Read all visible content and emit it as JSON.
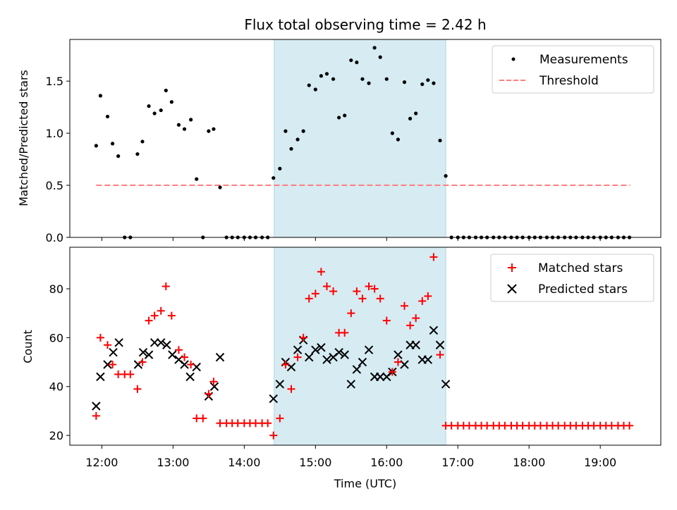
{
  "chart_data": {
    "type": "scatter",
    "title": "Flux total observing time = 2.42 h",
    "x_axis": {
      "label": "Time (UTC)",
      "range_hours": [
        11.55,
        19.85
      ],
      "ticks": [
        {
          "value": 12,
          "label": "12:00"
        },
        {
          "value": 13,
          "label": "13:00"
        },
        {
          "value": 14,
          "label": "14:00"
        },
        {
          "value": 15,
          "label": "15:00"
        },
        {
          "value": 16,
          "label": "16:00"
        },
        {
          "value": 17,
          "label": "17:00"
        },
        {
          "value": 18,
          "label": "18:00"
        },
        {
          "value": 19,
          "label": "19:00"
        }
      ]
    },
    "highlight_span": {
      "start_hours": 14.42,
      "end_hours": 16.83,
      "color": "#add8e6"
    },
    "top_panel": {
      "ylabel": "Matched/Predicted stars",
      "ylim": [
        0,
        1.9
      ],
      "yticks": [
        {
          "value": 0.0,
          "label": "0.0"
        },
        {
          "value": 0.5,
          "label": "0.5"
        },
        {
          "value": 1.0,
          "label": "1.0"
        },
        {
          "value": 1.5,
          "label": "1.5"
        }
      ],
      "legend": {
        "position": "upper-right",
        "measurements_label": "Measurements",
        "threshold_label": "Threshold"
      },
      "threshold": {
        "value": 0.5,
        "x_start_hours": 11.92,
        "x_end_hours": 19.42,
        "color": "#ff7f7f"
      },
      "measurements": [
        [
          11.92,
          0.88
        ],
        [
          11.98,
          1.36
        ],
        [
          12.08,
          1.16
        ],
        [
          12.15,
          0.9
        ],
        [
          12.23,
          0.78
        ],
        [
          12.32,
          0.0
        ],
        [
          12.4,
          0.0
        ],
        [
          12.5,
          0.8
        ],
        [
          12.57,
          0.92
        ],
        [
          12.66,
          1.26
        ],
        [
          12.74,
          1.19
        ],
        [
          12.83,
          1.22
        ],
        [
          12.9,
          1.41
        ],
        [
          12.98,
          1.3
        ],
        [
          13.08,
          1.08
        ],
        [
          13.16,
          1.04
        ],
        [
          13.25,
          1.13
        ],
        [
          13.33,
          0.56
        ],
        [
          13.42,
          0.0
        ],
        [
          13.5,
          1.02
        ],
        [
          13.57,
          1.04
        ],
        [
          13.66,
          0.48
        ],
        [
          13.75,
          0.0
        ],
        [
          13.83,
          0.0
        ],
        [
          13.91,
          0.0
        ],
        [
          14.0,
          0.0
        ],
        [
          14.08,
          0.0
        ],
        [
          14.16,
          0.0
        ],
        [
          14.25,
          0.0
        ],
        [
          14.33,
          0.0
        ],
        [
          14.41,
          0.57
        ],
        [
          14.5,
          0.66
        ],
        [
          14.58,
          1.02
        ],
        [
          14.66,
          0.85
        ],
        [
          14.75,
          0.94
        ],
        [
          14.83,
          1.02
        ],
        [
          14.91,
          1.46
        ],
        [
          15.0,
          1.42
        ],
        [
          15.08,
          1.55
        ],
        [
          15.16,
          1.57
        ],
        [
          15.25,
          1.52
        ],
        [
          15.33,
          1.15
        ],
        [
          15.41,
          1.17
        ],
        [
          15.5,
          1.7
        ],
        [
          15.58,
          1.68
        ],
        [
          15.66,
          1.52
        ],
        [
          15.75,
          1.48
        ],
        [
          15.83,
          1.82
        ],
        [
          15.91,
          1.73
        ],
        [
          16.0,
          1.52
        ],
        [
          16.08,
          1.0
        ],
        [
          16.16,
          0.94
        ],
        [
          16.25,
          1.49
        ],
        [
          16.33,
          1.14
        ],
        [
          16.41,
          1.19
        ],
        [
          16.5,
          1.47
        ],
        [
          16.58,
          1.51
        ],
        [
          16.66,
          1.48
        ],
        [
          16.75,
          0.93
        ],
        [
          16.83,
          0.59
        ],
        [
          16.91,
          0.0
        ],
        [
          17.0,
          0.0
        ],
        [
          17.08,
          0.0
        ],
        [
          17.16,
          0.0
        ],
        [
          17.25,
          0.0
        ],
        [
          17.33,
          0.0
        ],
        [
          17.41,
          0.0
        ],
        [
          17.5,
          0.0
        ],
        [
          17.58,
          0.0
        ],
        [
          17.66,
          0.0
        ],
        [
          17.75,
          0.0
        ],
        [
          17.83,
          0.0
        ],
        [
          17.91,
          0.0
        ],
        [
          18.0,
          0.0
        ],
        [
          18.08,
          0.0
        ],
        [
          18.16,
          0.0
        ],
        [
          18.25,
          0.0
        ],
        [
          18.33,
          0.0
        ],
        [
          18.41,
          0.0
        ],
        [
          18.5,
          0.0
        ],
        [
          18.58,
          0.0
        ],
        [
          18.66,
          0.0
        ],
        [
          18.75,
          0.0
        ],
        [
          18.83,
          0.0
        ],
        [
          18.91,
          0.0
        ],
        [
          19.0,
          0.0
        ],
        [
          19.08,
          0.0
        ],
        [
          19.16,
          0.0
        ],
        [
          19.25,
          0.0
        ],
        [
          19.33,
          0.0
        ],
        [
          19.41,
          0.0
        ]
      ]
    },
    "bottom_panel": {
      "ylabel": "Count",
      "ylim": [
        16,
        97
      ],
      "yticks": [
        {
          "value": 20,
          "label": "20"
        },
        {
          "value": 40,
          "label": "40"
        },
        {
          "value": 60,
          "label": "60"
        },
        {
          "value": 80,
          "label": "80"
        }
      ],
      "legend": {
        "position": "upper-right",
        "matched_label": "Matched stars",
        "predicted_label": "Predicted stars"
      },
      "matched_color": "#ff0000",
      "predicted_color": "#000000",
      "matched": [
        [
          11.92,
          28
        ],
        [
          11.98,
          60
        ],
        [
          12.08,
          57
        ],
        [
          12.15,
          49
        ],
        [
          12.23,
          45
        ],
        [
          12.32,
          45
        ],
        [
          12.4,
          45
        ],
        [
          12.5,
          39
        ],
        [
          12.57,
          50
        ],
        [
          12.66,
          67
        ],
        [
          12.74,
          69
        ],
        [
          12.83,
          71
        ],
        [
          12.9,
          81
        ],
        [
          12.98,
          69
        ],
        [
          13.08,
          55
        ],
        [
          13.16,
          52
        ],
        [
          13.25,
          49
        ],
        [
          13.33,
          27
        ],
        [
          13.42,
          27
        ],
        [
          13.5,
          37
        ],
        [
          13.57,
          42
        ],
        [
          13.66,
          25
        ],
        [
          13.75,
          25
        ],
        [
          13.83,
          25
        ],
        [
          13.91,
          25
        ],
        [
          14.0,
          25
        ],
        [
          14.08,
          25
        ],
        [
          14.16,
          25
        ],
        [
          14.25,
          25
        ],
        [
          14.33,
          25
        ],
        [
          14.41,
          20
        ],
        [
          14.5,
          27
        ],
        [
          14.58,
          49
        ],
        [
          14.66,
          39
        ],
        [
          14.75,
          52
        ],
        [
          14.83,
          60
        ],
        [
          14.91,
          76
        ],
        [
          15.0,
          78
        ],
        [
          15.08,
          87
        ],
        [
          15.16,
          81
        ],
        [
          15.25,
          79
        ],
        [
          15.33,
          62
        ],
        [
          15.41,
          62
        ],
        [
          15.5,
          70
        ],
        [
          15.58,
          79
        ],
        [
          15.66,
          76
        ],
        [
          15.75,
          81
        ],
        [
          15.83,
          80
        ],
        [
          15.91,
          76
        ],
        [
          16.0,
          67
        ],
        [
          16.08,
          46
        ],
        [
          16.16,
          50
        ],
        [
          16.25,
          73
        ],
        [
          16.33,
          65
        ],
        [
          16.41,
          68
        ],
        [
          16.5,
          75
        ],
        [
          16.58,
          77
        ],
        [
          16.66,
          93
        ],
        [
          16.75,
          53
        ],
        [
          16.83,
          24
        ],
        [
          16.91,
          24
        ],
        [
          17.0,
          24
        ],
        [
          17.08,
          24
        ],
        [
          17.16,
          24
        ],
        [
          17.25,
          24
        ],
        [
          17.33,
          24
        ],
        [
          17.41,
          24
        ],
        [
          17.5,
          24
        ],
        [
          17.58,
          24
        ],
        [
          17.66,
          24
        ],
        [
          17.75,
          24
        ],
        [
          17.83,
          24
        ],
        [
          17.91,
          24
        ],
        [
          18.0,
          24
        ],
        [
          18.08,
          24
        ],
        [
          18.16,
          24
        ],
        [
          18.25,
          24
        ],
        [
          18.33,
          24
        ],
        [
          18.41,
          24
        ],
        [
          18.5,
          24
        ],
        [
          18.58,
          24
        ],
        [
          18.66,
          24
        ],
        [
          18.75,
          24
        ],
        [
          18.83,
          24
        ],
        [
          18.91,
          24
        ],
        [
          19.0,
          24
        ],
        [
          19.08,
          24
        ],
        [
          19.16,
          24
        ],
        [
          19.25,
          24
        ],
        [
          19.33,
          24
        ],
        [
          19.41,
          24
        ]
      ],
      "predicted": [
        [
          11.92,
          32
        ],
        [
          11.98,
          44
        ],
        [
          12.08,
          49
        ],
        [
          12.16,
          54
        ],
        [
          12.24,
          58
        ],
        [
          12.51,
          49
        ],
        [
          12.58,
          54
        ],
        [
          12.66,
          53
        ],
        [
          12.74,
          58
        ],
        [
          12.83,
          58
        ],
        [
          12.91,
          57
        ],
        [
          12.99,
          53
        ],
        [
          13.08,
          51
        ],
        [
          13.16,
          49
        ],
        [
          13.24,
          44
        ],
        [
          13.33,
          48
        ],
        [
          13.5,
          36
        ],
        [
          13.58,
          40
        ],
        [
          13.66,
          52
        ],
        [
          14.41,
          35
        ],
        [
          14.5,
          41
        ],
        [
          14.58,
          50
        ],
        [
          14.66,
          48
        ],
        [
          14.75,
          55
        ],
        [
          14.83,
          59
        ],
        [
          14.91,
          52
        ],
        [
          15.0,
          55
        ],
        [
          15.08,
          56
        ],
        [
          15.16,
          51
        ],
        [
          15.25,
          52
        ],
        [
          15.33,
          54
        ],
        [
          15.41,
          53
        ],
        [
          15.5,
          41
        ],
        [
          15.58,
          47
        ],
        [
          15.66,
          50
        ],
        [
          15.75,
          55
        ],
        [
          15.83,
          44
        ],
        [
          15.91,
          44
        ],
        [
          16.0,
          44
        ],
        [
          16.08,
          46
        ],
        [
          16.16,
          53
        ],
        [
          16.25,
          49
        ],
        [
          16.33,
          57
        ],
        [
          16.41,
          57
        ],
        [
          16.5,
          51
        ],
        [
          16.58,
          51
        ],
        [
          16.66,
          63
        ],
        [
          16.75,
          57
        ],
        [
          16.83,
          41
        ]
      ]
    }
  }
}
